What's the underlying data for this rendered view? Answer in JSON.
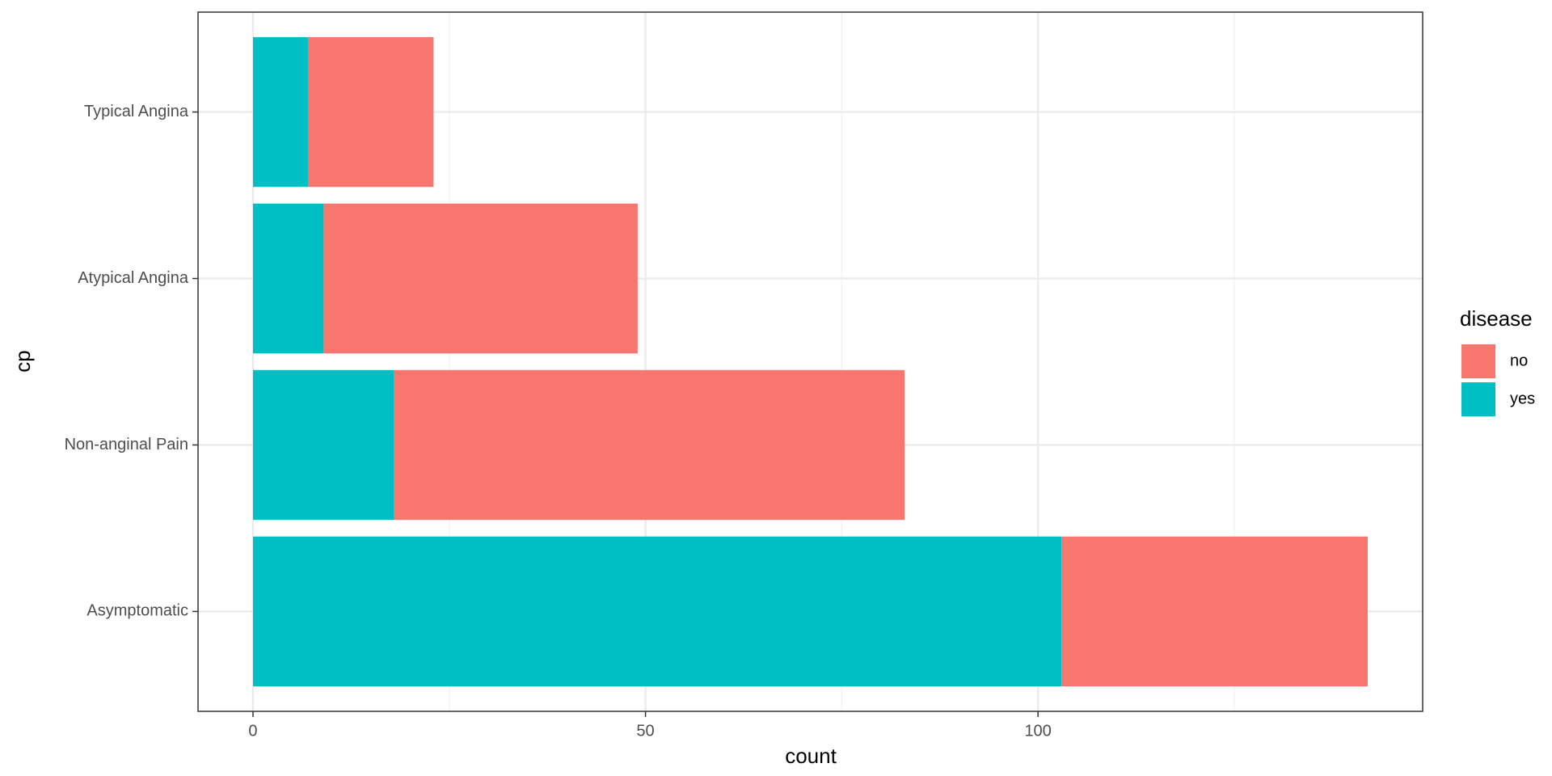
{
  "chart_data": {
    "type": "bar",
    "orientation": "horizontal",
    "stacked": true,
    "x_label": "count",
    "y_label": "cp",
    "legend_title": "disease",
    "legend_position": "right",
    "categories": [
      "Asymptomatic",
      "Non-anginal Pain",
      "Atypical Angina",
      "Typical Angina"
    ],
    "series": [
      {
        "name": "no",
        "color": "#f8766d",
        "values": [
          39,
          65,
          40,
          16
        ]
      },
      {
        "name": "yes",
        "color": "#00bfc4",
        "values": [
          103,
          18,
          9,
          7
        ]
      }
    ],
    "stack_order": [
      "yes",
      "no"
    ],
    "xlim": [
      -7,
      149
    ],
    "xticks": [
      0,
      50,
      100
    ],
    "x_minor_ticks": [
      25,
      75,
      125
    ],
    "grid": true
  }
}
